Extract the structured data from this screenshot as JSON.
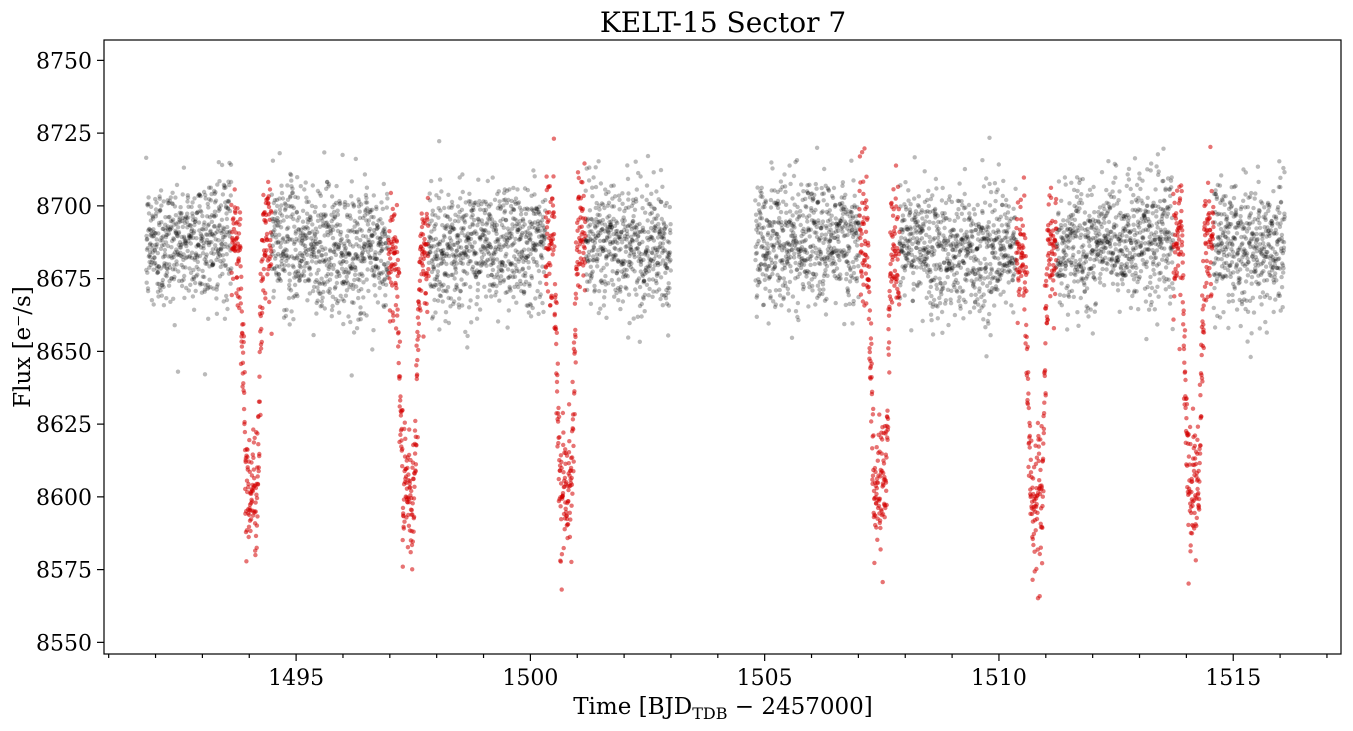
{
  "chart_data": {
    "type": "scatter",
    "title": "KELT-15 Sector 7",
    "xlabel_parts": {
      "prefix": "Time [BJD",
      "subscript": "TDB",
      "suffix": " − 2457000]"
    },
    "ylabel": "Flux [e⁻/s]",
    "xlim": [
      1490.9,
      1517.3
    ],
    "ylim": [
      8546,
      8757
    ],
    "x_ticks": [
      1495,
      1500,
      1505,
      1510,
      1515
    ],
    "x_tick_labels": [
      "1495",
      "1500",
      "1505",
      "1510",
      "1515"
    ],
    "x_minor_step": 1,
    "y_ticks": [
      8550,
      8575,
      8600,
      8625,
      8650,
      8675,
      8700,
      8725,
      8750
    ],
    "y_tick_labels": [
      "8550",
      "8575",
      "8600",
      "8625",
      "8650",
      "8675",
      "8700",
      "8725",
      "8750"
    ],
    "grid": false,
    "colors": {
      "out_of_transit": "#000000",
      "in_transit": "#d40000"
    },
    "baseline_flux": 8686,
    "scatter_sigma": 11,
    "transit_depth": 85,
    "segments": [
      {
        "start": 1491.8,
        "end": 1503.0
      },
      {
        "start": 1504.8,
        "end": 1516.1
      }
    ],
    "transit_centers": [
      1494.05,
      1497.4,
      1500.75,
      1507.45,
      1510.8,
      1514.15
    ],
    "transit_duration": 0.5,
    "transit_ingress": 0.13,
    "series": [
      {
        "values_note": "",
        "points_drawn_by_script": true
      },
      {
        "values_note": "",
        "points_drawn_by_script": true
      }
    ]
  }
}
